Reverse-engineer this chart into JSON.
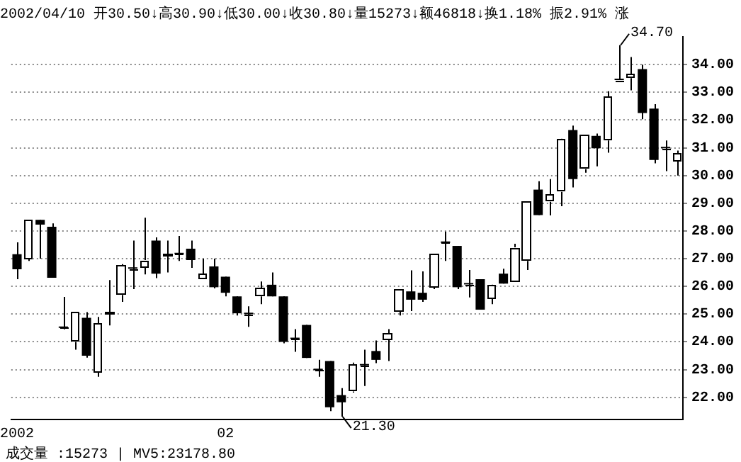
{
  "chart_data": {
    "type": "candlestick",
    "title": "2002/04/10 开30.50↓高30.90↓低30.00↓收30.80↓量15273↓额46818↓换1.18% 振2.91% 涨",
    "categories": [
      "2002",
      null,
      null,
      null,
      null,
      null,
      null,
      null,
      null,
      null,
      null,
      null,
      null,
      null,
      null,
      null,
      null,
      null,
      "02",
      null,
      null,
      null,
      null,
      null,
      null,
      null,
      null,
      null,
      null,
      null,
      null,
      null,
      null,
      null,
      null,
      null,
      null,
      null,
      null,
      null,
      null,
      null,
      null,
      null,
      null,
      null,
      null,
      null,
      null,
      null,
      null,
      null,
      null,
      null,
      null,
      null,
      null,
      null
    ],
    "ohlc": [
      [
        27.16,
        27.59,
        26.26,
        26.62
      ],
      [
        27.0,
        28.4,
        26.92,
        28.39
      ],
      [
        28.4,
        28.4,
        27.0,
        28.23
      ],
      [
        28.15,
        28.27,
        26.31,
        26.31
      ],
      [
        24.5,
        25.62,
        24.45,
        24.5
      ],
      [
        24.0,
        25.07,
        23.72,
        25.07
      ],
      [
        24.87,
        25.07,
        23.43,
        23.5
      ],
      [
        22.9,
        24.9,
        22.74,
        24.67
      ],
      [
        25.0,
        26.23,
        24.59,
        25.07
      ],
      [
        25.69,
        26.8,
        25.44,
        26.75
      ],
      [
        26.64,
        27.65,
        25.9,
        26.64
      ],
      [
        26.67,
        28.48,
        26.43,
        26.95
      ],
      [
        27.65,
        27.77,
        26.3,
        26.46
      ],
      [
        27.08,
        27.65,
        26.5,
        27.16
      ],
      [
        27.16,
        27.82,
        26.92,
        27.16
      ],
      [
        27.36,
        27.65,
        26.67,
        26.95
      ],
      [
        26.26,
        27.0,
        26.26,
        26.46
      ],
      [
        26.72,
        27.0,
        25.93,
        25.97
      ],
      [
        26.35,
        26.35,
        25.64,
        25.77
      ],
      [
        25.64,
        25.64,
        24.95,
        25.03
      ],
      [
        25.0,
        25.28,
        24.54,
        25.0
      ],
      [
        25.64,
        26.18,
        25.36,
        25.93
      ],
      [
        26.06,
        26.5,
        25.64,
        25.64
      ],
      [
        25.64,
        25.64,
        23.95,
        24.0
      ],
      [
        24.1,
        24.46,
        23.64,
        24.1
      ],
      [
        24.61,
        24.61,
        23.42,
        23.42
      ],
      [
        22.98,
        23.35,
        22.74,
        22.98
      ],
      [
        23.31,
        23.31,
        21.5,
        21.64
      ],
      [
        22.08,
        22.33,
        21.3,
        21.82
      ],
      [
        22.21,
        23.25,
        22.17,
        23.2
      ],
      [
        23.15,
        23.72,
        22.41,
        23.15
      ],
      [
        23.67,
        24.05,
        23.23,
        23.35
      ],
      [
        24.08,
        24.46,
        23.31,
        24.3
      ],
      [
        25.11,
        25.88,
        24.95,
        25.88
      ],
      [
        25.82,
        26.58,
        25.11,
        25.52
      ],
      [
        25.77,
        26.54,
        25.44,
        25.52
      ],
      [
        25.97,
        27.16,
        25.9,
        27.16
      ],
      [
        27.57,
        27.98,
        26.92,
        27.57
      ],
      [
        27.46,
        27.46,
        25.9,
        25.97
      ],
      [
        26.07,
        26.59,
        25.6,
        26.07
      ],
      [
        26.26,
        26.26,
        25.16,
        25.16
      ],
      [
        25.57,
        26.07,
        25.36,
        26.07
      ],
      [
        26.46,
        26.64,
        26.1,
        26.1
      ],
      [
        26.18,
        27.54,
        26.18,
        27.41
      ],
      [
        26.92,
        29.05,
        26.59,
        29.05
      ],
      [
        29.49,
        29.79,
        28.57,
        28.57
      ],
      [
        29.05,
        29.87,
        28.56,
        29.31
      ],
      [
        29.41,
        31.34,
        28.89,
        31.34
      ],
      [
        31.64,
        31.8,
        29.57,
        29.87
      ],
      [
        30.23,
        31.46,
        30.1,
        31.46
      ],
      [
        31.43,
        31.51,
        30.33,
        30.98
      ],
      [
        31.26,
        33.04,
        30.82,
        32.85
      ],
      [
        33.44,
        34.7,
        33.44,
        33.44
      ],
      [
        33.51,
        34.27,
        33.07,
        33.67
      ],
      [
        33.84,
        34.0,
        32.03,
        32.25
      ],
      [
        32.41,
        32.57,
        30.44,
        30.56
      ],
      [
        30.98,
        31.26,
        30.16,
        30.98
      ],
      [
        30.5,
        30.9,
        30.0,
        30.8
      ]
    ],
    "colors": [
      "#000000",
      "#ffffff",
      "#000000",
      "#000000",
      "#000000",
      "#ffffff",
      "#000000",
      "#ffffff",
      "#ffffff",
      "#ffffff",
      "#000000",
      "#ffffff",
      "#000000",
      "#ffffff",
      "#000000",
      "#000000",
      "#ffffff",
      "#000000",
      "#000000",
      "#000000",
      "#000000",
      "#ffffff",
      "#000000",
      "#000000",
      "#000000",
      "#000000",
      "#000000",
      "#000000",
      "#000000",
      "#ffffff",
      "#000000",
      "#000000",
      "#ffffff",
      "#ffffff",
      "#000000",
      "#000000",
      "#ffffff",
      "#000000",
      "#000000",
      "#000000",
      "#000000",
      "#ffffff",
      "#000000",
      "#ffffff",
      "#ffffff",
      "#000000",
      "#ffffff",
      "#ffffff",
      "#000000",
      "#ffffff",
      "#000000",
      "#ffffff",
      "#000000",
      "#ffffff",
      "#000000",
      "#000000",
      "#000000",
      "#ffffff"
    ],
    "ylim": [
      21.2,
      35.0
    ],
    "yticks": [
      {
        "value": 22,
        "label": "22.00"
      },
      {
        "value": 23,
        "label": "23.00"
      },
      {
        "value": 24,
        "label": "24.00"
      },
      {
        "value": 25,
        "label": "25.00"
      },
      {
        "value": 26,
        "label": "26.00"
      },
      {
        "value": 27,
        "label": "27.00"
      },
      {
        "value": 28,
        "label": "28.00"
      },
      {
        "value": 29,
        "label": "29.00"
      },
      {
        "value": 30,
        "label": "30.00"
      },
      {
        "value": 31,
        "label": "31.00"
      },
      {
        "value": 32,
        "label": "32.00"
      },
      {
        "value": 33,
        "label": "33.00"
      },
      {
        "value": 34,
        "label": "34.00"
      }
    ],
    "grid": "y",
    "annotations": [
      "34.70",
      "21.30",
      "成交量 :15273 | MV5:23178.80"
    ]
  }
}
